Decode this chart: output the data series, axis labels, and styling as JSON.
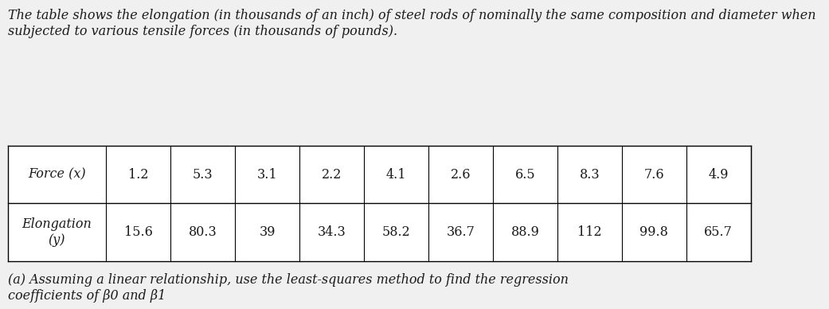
{
  "paragraph1": "The table shows the elongation (in thousands of an inch) of steel rods of nominally the same composition and diameter when subjected to various tensile forces (in thousands of pounds).",
  "force_label": "Force (x)",
  "elongation_label": "Elongation\n(y)",
  "force_values": [
    "1.2",
    "5.3",
    "3.1",
    "2.2",
    "4.1",
    "2.6",
    "6.5",
    "8.3",
    "7.6",
    "4.9"
  ],
  "elongation_values": [
    "15.6",
    "80.3",
    "39",
    "34.3",
    "58.2",
    "36.7",
    "88.9",
    "112",
    "99.8",
    "65.7"
  ],
  "paragraph2": "(a) Assuming a linear relationship, use the least-squares method to find the regression\ncoefficients of β0 and β1",
  "bg_color": "#f0f0f0",
  "text_color": "#1a1a1a",
  "table_bg": "#ffffff",
  "font_size_text": 11.5,
  "font_size_table": 11.5,
  "header_bg": "#ffffff"
}
